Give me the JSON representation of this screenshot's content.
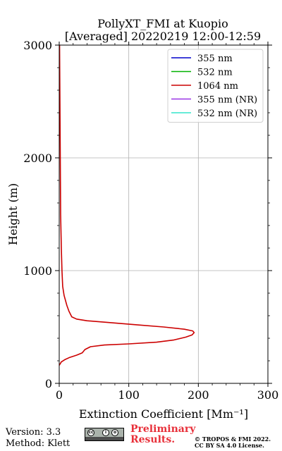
{
  "chart_data": {
    "type": "line",
    "title": "PollyXT_FMI at Kuopio",
    "subtitle": "[Averaged] 20220219 12:00-12:59",
    "xlabel": "Extinction Coefficient [Mm⁻¹]",
    "ylabel": "Height (m)",
    "xlim": [
      0,
      300
    ],
    "ylim": [
      0,
      3000
    ],
    "x_ticks": [
      "0",
      "100",
      "200",
      "300"
    ],
    "y_ticks": [
      "0",
      "1000",
      "2000",
      "3000"
    ],
    "grid": true,
    "legend_position": "top-right",
    "legend": [
      {
        "label": "355 nm",
        "color": "#0000cc"
      },
      {
        "label": "532 nm",
        "color": "#00b200"
      },
      {
        "label": "1064 nm",
        "color": "#cc0000"
      },
      {
        "label": "355 nm (NR)",
        "color": "#9933e6"
      },
      {
        "label": "532 nm (NR)",
        "color": "#33e6cc"
      }
    ],
    "series": [
      {
        "name": "1064 nm",
        "color": "#cc0000",
        "points": [
          [
            0,
            160
          ],
          [
            3,
            190
          ],
          [
            8,
            210
          ],
          [
            15,
            230
          ],
          [
            25,
            250
          ],
          [
            33,
            270
          ],
          [
            37,
            300
          ],
          [
            45,
            325
          ],
          [
            65,
            340
          ],
          [
            100,
            350
          ],
          [
            140,
            365
          ],
          [
            165,
            385
          ],
          [
            182,
            410
          ],
          [
            191,
            430
          ],
          [
            194,
            450
          ],
          [
            192,
            465
          ],
          [
            180,
            480
          ],
          [
            150,
            500
          ],
          [
            110,
            520
          ],
          [
            70,
            540
          ],
          [
            40,
            555
          ],
          [
            25,
            570
          ],
          [
            18,
            590
          ],
          [
            14,
            640
          ],
          [
            11,
            690
          ],
          [
            7,
            780
          ],
          [
            5,
            860
          ],
          [
            4,
            1000
          ],
          [
            3,
            1200
          ],
          [
            2,
            1500
          ],
          [
            1.5,
            2000
          ],
          [
            1,
            2500
          ],
          [
            0.5,
            3000
          ]
        ]
      }
    ]
  },
  "footer": {
    "version": "Version: 3.3",
    "method": "Method: Klett",
    "preliminary": "Preliminary Results.",
    "preliminary_line1": "Preliminary",
    "preliminary_line2": "Results.",
    "copyright_line1": "© TROPOS & FMI 2022.",
    "copyright_line2": "CC BY SA 4.0 License.",
    "license_badge": "cc-by-sa-icon"
  }
}
